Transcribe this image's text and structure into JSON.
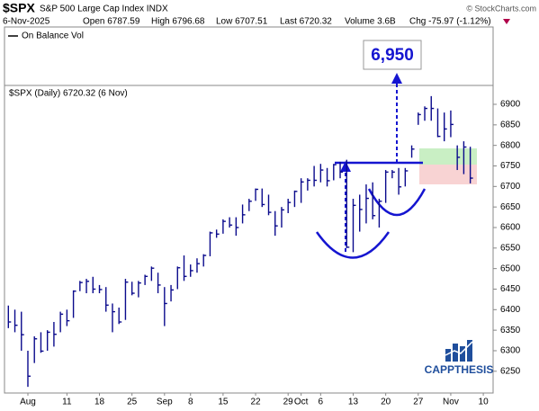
{
  "chart_data": {
    "type": "ohlc",
    "title": "$SPX",
    "subtitle": "S&P 500 Large Cap Index INDX",
    "source": "© StockCharts.com",
    "info": [
      "6-Nov-2025",
      "Open 6787.59",
      "High 6796.68",
      "Low 6707.51",
      "Last 6720.32",
      "Volume 3.6B",
      "Chg -75.97 (-1.12%)"
    ],
    "indicator_legend": "On Balance Vol",
    "price_label": "$SPX (Daily) 6720.32 (6 Nov)",
    "annotation": "6,950",
    "logo": "CAPPTHESIS",
    "color": "#0a0a8c",
    "grid": false,
    "categories": [
      null,
      null,
      null,
      "Aug",
      null,
      null,
      null,
      null,
      null,
      "11",
      null,
      null,
      null,
      null,
      "18",
      null,
      null,
      null,
      null,
      "25",
      null,
      null,
      null,
      null,
      "Sep",
      null,
      null,
      null,
      "8",
      null,
      null,
      null,
      null,
      "15",
      null,
      null,
      null,
      null,
      "22",
      null,
      null,
      null,
      null,
      "29",
      null,
      "Oct",
      null,
      null,
      "6",
      null,
      null,
      null,
      null,
      "13",
      null,
      null,
      null,
      null,
      "20",
      null,
      null,
      null,
      null,
      "27",
      null,
      null,
      null,
      null,
      "Nov",
      null,
      null,
      null,
      null,
      "10"
    ],
    "high": [
      6410,
      6400,
      6395,
      6300,
      6335,
      6345,
      6350,
      6370,
      6395,
      6400,
      6447,
      6470,
      6475,
      6480,
      6460,
      6455,
      6415,
      6405,
      6475,
      6468,
      6470,
      6485,
      6505,
      6490,
      6455,
      6460,
      6505,
      6532,
      6510,
      6525,
      6535,
      6590,
      6595,
      6620,
      6625,
      6625,
      6656,
      6670,
      6695,
      6695,
      6680,
      6640,
      6650,
      6670,
      6690,
      6720,
      6720,
      6750,
      6755,
      6745,
      6755,
      6760,
      6765,
      6670,
      6680,
      6705,
      6710,
      6670,
      6740,
      6740,
      6745,
      6745,
      6800,
      6880,
      6895,
      6920,
      6890,
      6880,
      6885,
      6800,
      6810,
      6796.68,
      null,
      null
    ],
    "low": [
      6355,
      6345,
      6300,
      6212,
      6270,
      6295,
      6300,
      6310,
      6345,
      6360,
      6380,
      6445,
      6440,
      6440,
      6440,
      6395,
      6345,
      6365,
      6375,
      6435,
      6430,
      6460,
      6470,
      6440,
      6360,
      6420,
      6450,
      6470,
      6480,
      6490,
      6505,
      6530,
      6575,
      6585,
      6600,
      6580,
      6610,
      6640,
      6665,
      6650,
      6630,
      6580,
      6600,
      6635,
      6650,
      6660,
      6690,
      6700,
      6710,
      6700,
      6715,
      6720,
      6550,
      6540,
      6590,
      6610,
      6620,
      6600,
      6660,
      6720,
      6680,
      6700,
      6770,
      6850,
      6860,
      6860,
      6820,
      6810,
      6820,
      6740,
      6730,
      6707.51,
      null,
      null
    ],
    "close": [
      6370,
      6362,
      6339,
      6238,
      6329,
      6299,
      6345,
      6340,
      6389,
      6373,
      6445,
      6466,
      6469,
      6450,
      6449,
      6411,
      6395,
      6370,
      6467,
      6440,
      6465,
      6481,
      6501,
      6460,
      6415,
      6448,
      6502,
      6481,
      6495,
      6512,
      6532,
      6587,
      6584,
      6615,
      6606,
      6600,
      6631,
      6664,
      6693,
      6656,
      6637,
      6604,
      6643,
      6661,
      6688,
      6711,
      6715,
      6715,
      6740,
      6714,
      6753,
      6735,
      6552,
      6654,
      6644,
      6671,
      6629,
      6664,
      6735,
      6735,
      6699,
      6738,
      6791,
      6875,
      6890,
      6890,
      6822,
      6840,
      6851,
      6771,
      6796,
      6720.32,
      null,
      null
    ],
    "ylim": [
      6197,
      6946
    ],
    "yticks": [
      6250,
      6300,
      6350,
      6400,
      6450,
      6500,
      6550,
      6600,
      6650,
      6700,
      6750,
      6800,
      6850,
      6900
    ]
  }
}
